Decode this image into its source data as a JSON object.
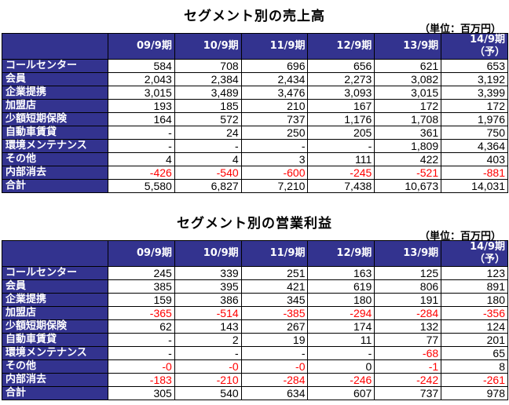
{
  "sales": {
    "title": "セグメント別の売上高",
    "unit": "（単位：百万円）",
    "columns": [
      "09/9期",
      "10/9期",
      "11/9期",
      "12/9期",
      "13/9期",
      "14/9期 （予）"
    ],
    "rows": [
      {
        "label": "コールセンター",
        "values": [
          "584",
          "708",
          "696",
          "656",
          "621",
          "653"
        ]
      },
      {
        "label": "会員",
        "values": [
          "2,043",
          "2,384",
          "2,434",
          "2,273",
          "3,082",
          "3,192"
        ]
      },
      {
        "label": "企業提携",
        "values": [
          "3,015",
          "3,489",
          "3,476",
          "3,093",
          "3,015",
          "3,399"
        ]
      },
      {
        "label": "加盟店",
        "values": [
          "193",
          "185",
          "210",
          "167",
          "172",
          "172"
        ]
      },
      {
        "label": "少額短期保険",
        "values": [
          "164",
          "572",
          "737",
          "1,176",
          "1,708",
          "1,976"
        ]
      },
      {
        "label": "自動車賃貸",
        "values": [
          "-",
          "24",
          "250",
          "205",
          "361",
          "750"
        ]
      },
      {
        "label": "環境メンテナンス",
        "values": [
          "-",
          "-",
          "-",
          "-",
          "1,809",
          "4,364"
        ]
      },
      {
        "label": "その他",
        "values": [
          "4",
          "4",
          "3",
          "111",
          "422",
          "403"
        ]
      },
      {
        "label": "内部消去",
        "values": [
          "-426",
          "-540",
          "-600",
          "-245",
          "-521",
          "-881"
        ]
      },
      {
        "label": "合計",
        "values": [
          "5,580",
          "6,827",
          "7,210",
          "7,438",
          "10,673",
          "14,031"
        ]
      }
    ]
  },
  "profit": {
    "title": "セグメント別の営業利益",
    "unit": "（単位：百万円）",
    "columns": [
      "09/9期",
      "10/9期",
      "11/9期",
      "12/9期",
      "13/9期",
      "14/9期 （予）"
    ],
    "rows": [
      {
        "label": "コールセンター",
        "values": [
          "245",
          "339",
          "251",
          "163",
          "125",
          "123"
        ]
      },
      {
        "label": "会員",
        "values": [
          "385",
          "395",
          "421",
          "619",
          "806",
          "891"
        ]
      },
      {
        "label": "企業提携",
        "values": [
          "159",
          "386",
          "345",
          "180",
          "191",
          "180"
        ]
      },
      {
        "label": "加盟店",
        "values": [
          "-365",
          "-514",
          "-385",
          "-294",
          "-284",
          "-356"
        ]
      },
      {
        "label": "少額短期保険",
        "values": [
          "62",
          "143",
          "267",
          "174",
          "132",
          "124"
        ]
      },
      {
        "label": "自動車賃貸",
        "values": [
          "-",
          "2",
          "19",
          "11",
          "77",
          "201"
        ]
      },
      {
        "label": "環境メンテナンス",
        "values": [
          "-",
          "-",
          "-",
          "-",
          "-68",
          "65"
        ]
      },
      {
        "label": "その他",
        "values": [
          "-0",
          "-0",
          "-0",
          "0",
          "-1",
          "8"
        ]
      },
      {
        "label": "内部消去",
        "values": [
          "-183",
          "-210",
          "-284",
          "-246",
          "-242",
          "-261"
        ]
      },
      {
        "label": "合計",
        "values": [
          "305",
          "540",
          "634",
          "607",
          "737",
          "978"
        ]
      }
    ]
  },
  "colors": {
    "header_bg": "#33338f",
    "header_text": "#ffffff",
    "negative": "#ff0000"
  }
}
